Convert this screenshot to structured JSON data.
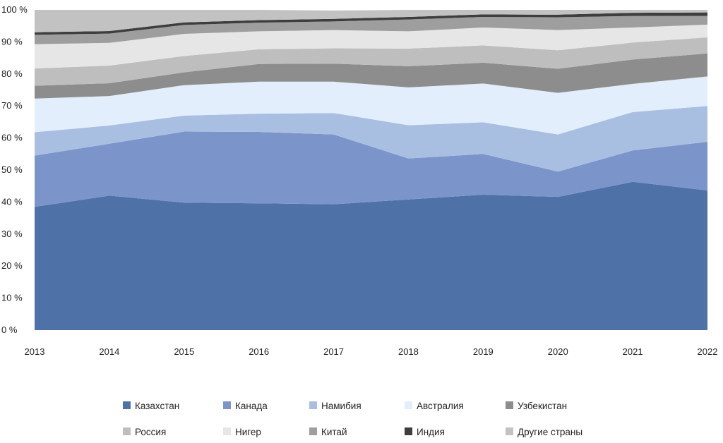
{
  "chart_data": {
    "type": "area",
    "stacked": true,
    "percent": true,
    "title": "",
    "xlabel": "",
    "ylabel": "",
    "x": [
      "2013",
      "2014",
      "2015",
      "2016",
      "2017",
      "2018",
      "2019",
      "2020",
      "2021",
      "2022"
    ],
    "ylim": [
      0,
      100
    ],
    "y_ticks": [
      0,
      10,
      20,
      30,
      40,
      50,
      60,
      70,
      80,
      90,
      100
    ],
    "y_tick_suffix": " %",
    "grid": false,
    "legend_position": "bottom",
    "series": [
      {
        "name": "Казахстан",
        "color": "#4e71a8",
        "values": [
          38.5,
          42,
          39.8,
          39.6,
          39.3,
          40.8,
          42.3,
          41.6,
          46.3,
          43.6
        ]
      },
      {
        "name": "Канада",
        "color": "#7b95ca",
        "values": [
          16,
          16.2,
          22.2,
          22.3,
          21.8,
          12.8,
          12.7,
          7.9,
          9.8,
          15.2
        ]
      },
      {
        "name": "Намибия",
        "color": "#a9bfe2",
        "values": [
          7.3,
          5.7,
          5,
          5.7,
          6.7,
          10.4,
          9.9,
          11.6,
          12,
          11.2
        ]
      },
      {
        "name": "Австралия",
        "color": "#e2eefb",
        "values": [
          10.5,
          9.2,
          9.5,
          10,
          9.8,
          11.8,
          12.1,
          13,
          8.8,
          9.2
        ]
      },
      {
        "name": "Узбекистан",
        "color": "#8d8d8d",
        "values": [
          4,
          4,
          4,
          5.5,
          5.6,
          6.6,
          6.5,
          7.5,
          7.6,
          7.2
        ]
      },
      {
        "name": "Россия",
        "color": "#bebebe",
        "values": [
          5.4,
          5.5,
          5.1,
          4.6,
          4.8,
          5.5,
          5.4,
          5.8,
          5.3,
          5
        ]
      },
      {
        "name": "Нигер",
        "color": "#e6e6e6",
        "values": [
          7.6,
          7.1,
          6.9,
          5.6,
          5.7,
          5.4,
          5.6,
          6.3,
          4.7,
          4
        ]
      },
      {
        "name": "Китай",
        "color": "#9e9e9e",
        "values": [
          2.9,
          2.9,
          2.8,
          2.7,
          2.7,
          3.7,
          3.3,
          4,
          3.6,
          2.7
        ]
      },
      {
        "name": "Индия",
        "color": "#3e3e3e",
        "values": [
          0.8,
          0.8,
          0.8,
          0.8,
          0.8,
          0.8,
          0.8,
          0.8,
          1,
          1.1
        ]
      },
      {
        "name": "Другие страны",
        "color": "#c2c2c2",
        "values": [
          7,
          6.6,
          3.9,
          3.2,
          2.6,
          2.2,
          1.4,
          1.5,
          0.9,
          0.8
        ]
      }
    ]
  }
}
